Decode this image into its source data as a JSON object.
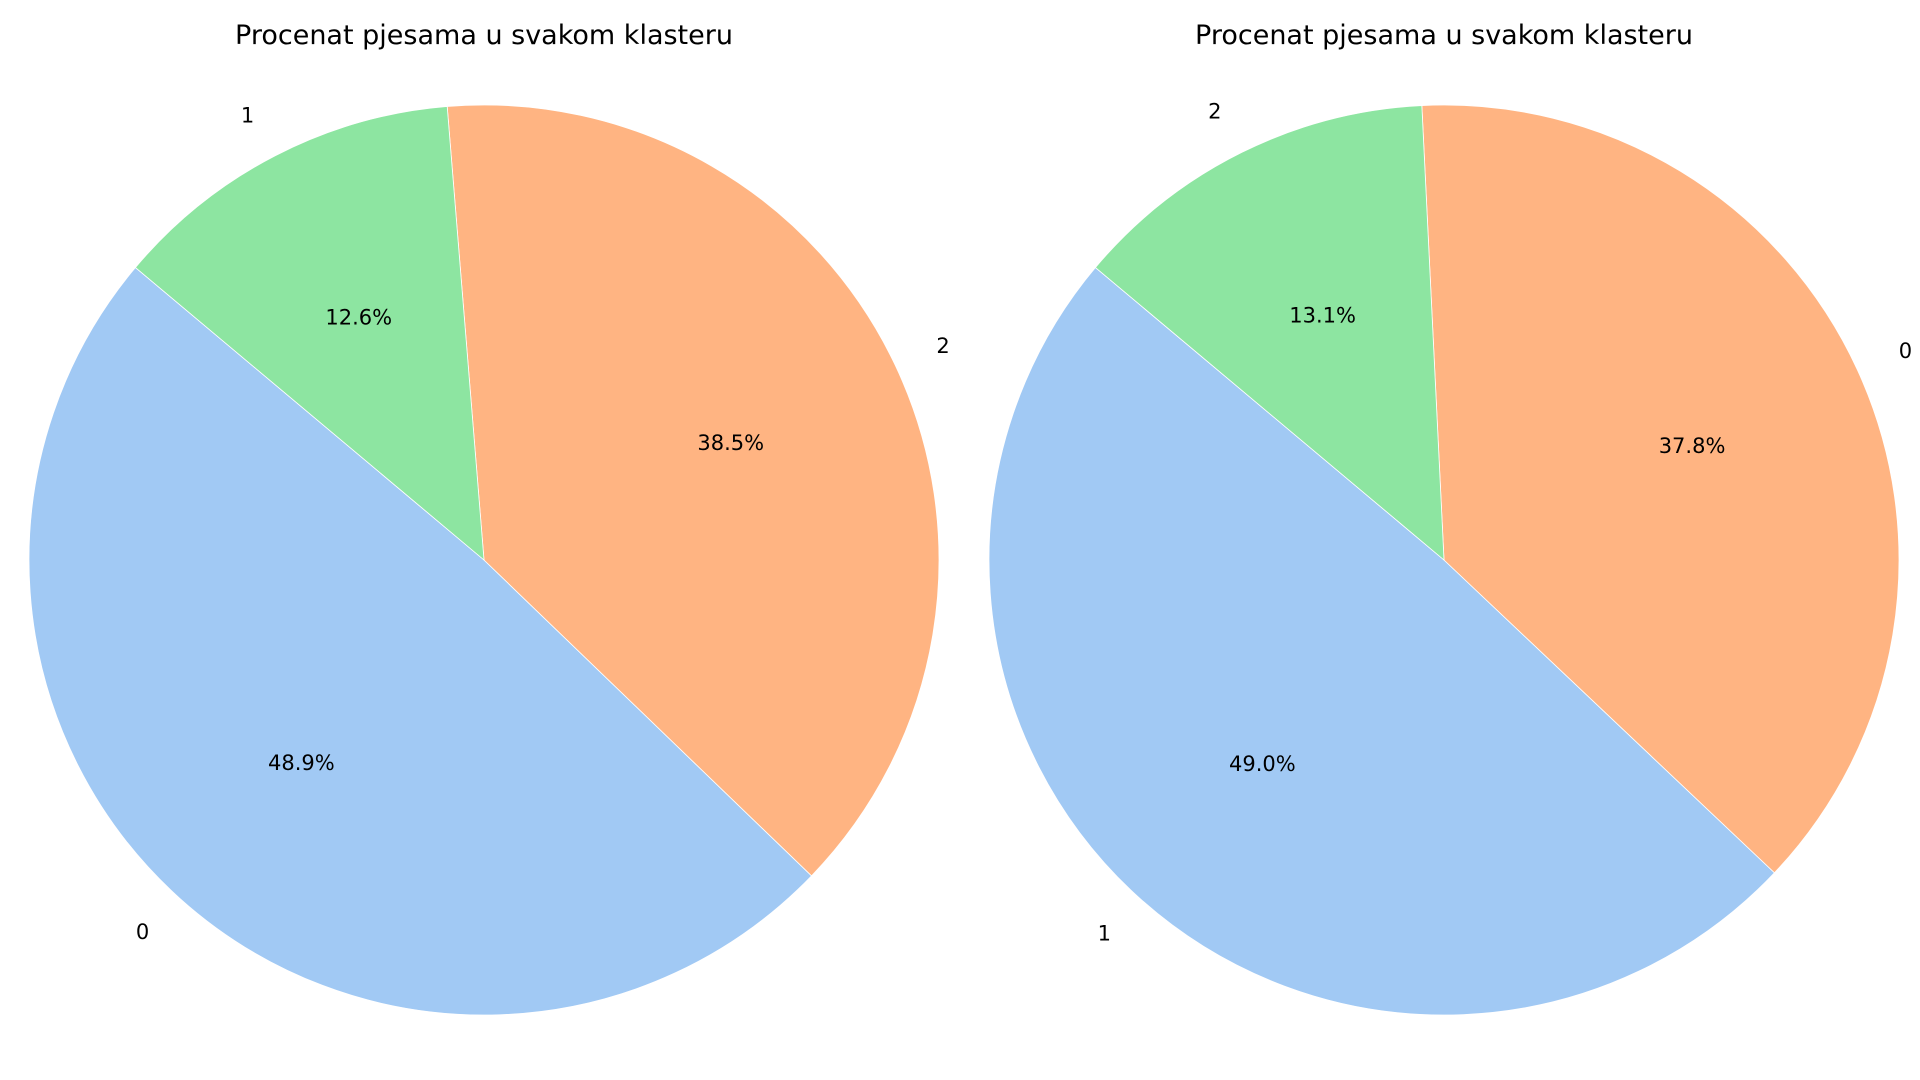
{
  "chart_data": [
    {
      "type": "pie",
      "title": "Procenat pjesama u svakom klasteru",
      "startangle": 140,
      "slices": [
        {
          "label": "0",
          "value": 48.9,
          "pct_text": "48.9%",
          "color": "#a1c9f4"
        },
        {
          "label": "2",
          "value": 38.5,
          "pct_text": "38.5%",
          "color": "#ffb482"
        },
        {
          "label": "1",
          "value": 12.6,
          "pct_text": "12.6%",
          "color": "#8de5a1"
        }
      ]
    },
    {
      "type": "pie",
      "title": "Procenat pjesama u svakom klasteru",
      "startangle": 140,
      "slices": [
        {
          "label": "1",
          "value": 49.0,
          "pct_text": "49.0%",
          "color": "#a1c9f4"
        },
        {
          "label": "0",
          "value": 37.8,
          "pct_text": "37.8%",
          "color": "#ffb482"
        },
        {
          "label": "2",
          "value": 13.1,
          "pct_text": "13.1%",
          "color": "#8de5a1"
        }
      ]
    }
  ]
}
